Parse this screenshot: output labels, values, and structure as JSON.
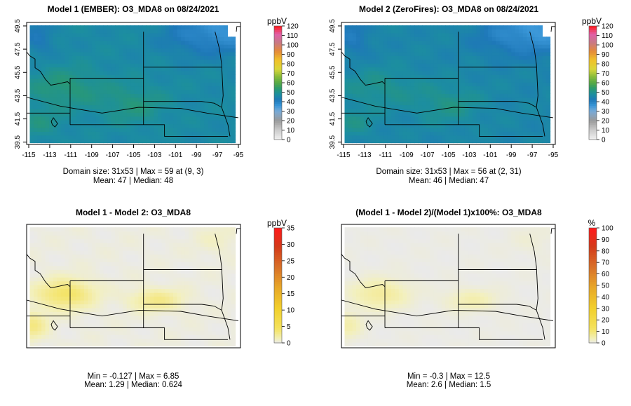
{
  "chart_data": [
    {
      "type": "heatmap",
      "title": "Model 1 (EMBER): O3_MDA8 on 08/24/2021",
      "x_ticks": [
        "-115",
        "-113",
        "-111",
        "-109",
        "-107",
        "-105",
        "-103",
        "-101",
        "-99",
        "-97",
        "-95"
      ],
      "y_ticks": [
        "39.5",
        "41.5",
        "43.5",
        "45.5",
        "47.5",
        "49.5"
      ],
      "xlim": [
        -115.2,
        -94.8
      ],
      "ylim": [
        39.3,
        49.8
      ],
      "colorbar": {
        "label": "ppbV",
        "ticks": [
          "0",
          "10",
          "20",
          "30",
          "40",
          "50",
          "60",
          "70",
          "80",
          "90",
          "100",
          "110",
          "120"
        ],
        "range": [
          0,
          120
        ]
      },
      "stats": [
        "Domain size: 31x53 | Max = 59 at (9, 3)",
        "Mean: 47 |  Median: 48"
      ],
      "palette": "o3",
      "value_range": [
        37,
        59
      ],
      "base_value": 42
    },
    {
      "type": "heatmap",
      "title": "Model 2 (ZeroFires): O3_MDA8 on 08/24/2021",
      "x_ticks": [
        "-115",
        "-113",
        "-111",
        "-109",
        "-107",
        "-105",
        "-103",
        "-101",
        "-99",
        "-97",
        "-95"
      ],
      "y_ticks": [
        "39.5",
        "41.5",
        "43.5",
        "45.5",
        "47.5",
        "49.5"
      ],
      "xlim": [
        -115.2,
        -94.8
      ],
      "ylim": [
        39.3,
        49.8
      ],
      "colorbar": {
        "label": "ppbV",
        "ticks": [
          "0",
          "10",
          "20",
          "30",
          "40",
          "50",
          "60",
          "70",
          "80",
          "90",
          "100",
          "110",
          "120"
        ],
        "range": [
          0,
          120
        ]
      },
      "stats": [
        "Domain size: 31x53 | Max = 56 at (2, 31)",
        "Mean: 46 |  Median: 47"
      ],
      "palette": "o3",
      "value_range": [
        36,
        56
      ],
      "base_value": 41
    },
    {
      "type": "heatmap",
      "title": "Model 1 - Model 2: O3_MDA8",
      "x_ticks": [],
      "y_ticks": [],
      "xlim": [
        -115.2,
        -94.8
      ],
      "ylim": [
        39.3,
        49.8
      ],
      "colorbar": {
        "label": "ppbV",
        "ticks": [
          "0",
          "5",
          "10",
          "15",
          "20",
          "25",
          "30",
          "35"
        ],
        "range": [
          0,
          35
        ]
      },
      "stats": [
        "Min = -0.127 | Max = 6.85",
        "Mean: 1.29 |  Median: 0.624"
      ],
      "palette": "diff",
      "value_range": [
        -0.127,
        6.85
      ],
      "base_value": 0.3
    },
    {
      "type": "heatmap",
      "title": "(Model 1 - Model 2)/(Model 1)x100%: O3_MDA8",
      "x_ticks": [],
      "y_ticks": [],
      "xlim": [
        -115.2,
        -94.8
      ],
      "ylim": [
        39.3,
        49.8
      ],
      "colorbar": {
        "label": "%",
        "ticks": [
          "0",
          "10",
          "20",
          "30",
          "40",
          "50",
          "60",
          "70",
          "80",
          "90",
          "100"
        ],
        "range": [
          0,
          100
        ]
      },
      "stats": [
        "Min = -0.3 | Max = 12.5",
        "Mean: 2.6 |  Median: 1.5"
      ],
      "palette": "diff",
      "value_range": [
        -0.3,
        12.5
      ],
      "base_value": 0.5
    }
  ]
}
